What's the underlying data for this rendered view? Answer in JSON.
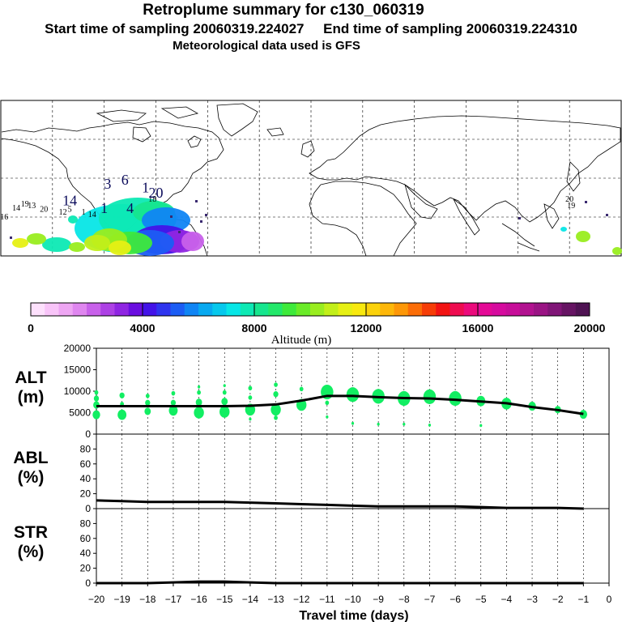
{
  "header": {
    "title": "Retroplume summary for c130_060319",
    "start_label": "Start time of sampling",
    "start_value": "20060319.224027",
    "end_label": "End time of sampling",
    "end_value": "20060319.224310",
    "met_line": "Meteorological data used is GFS"
  },
  "colors": {
    "altitude_scale": [
      "#fde0fc",
      "#f8c4f8",
      "#eea6f3",
      "#df86ef",
      "#c861ea",
      "#ad41e5",
      "#8f25e2",
      "#6a0ee0",
      "#4313e8",
      "#2f35ef",
      "#1c5df4",
      "#1085f4",
      "#08a9f0",
      "#06c8ec",
      "#07e6e6",
      "#0de9b4",
      "#16e68e",
      "#23e86a",
      "#3eea3b",
      "#6aeb28",
      "#99ed1f",
      "#c2ef19",
      "#e6f014",
      "#f8e90f",
      "#fbd20b",
      "#fdb709",
      "#fd9707",
      "#fb6d07",
      "#f63d07",
      "#f21313",
      "#ee0c50",
      "#eb0a7c",
      "#e40a96",
      "#d60b9e",
      "#c70e99",
      "#b21290",
      "#9a1484",
      "#801577",
      "#661463",
      "#4f1353"
    ],
    "marker": "#12ee62",
    "line": "#000000"
  },
  "chart_data": [
    {
      "type": "map",
      "name": "retroplume-map",
      "cluster_labels": [
        {
          "label": "18",
          "lon": -92,
          "lat": 12
        },
        {
          "label": "12",
          "lon": -144,
          "lat": 2
        },
        {
          "label": "14",
          "lon": -171,
          "lat": 5
        },
        {
          "label": "16",
          "lon": -178,
          "lat": -2
        },
        {
          "label": "19",
          "lon": -166,
          "lat": 8
        },
        {
          "label": "20",
          "lon": -155,
          "lat": 4
        },
        {
          "label": "13",
          "lon": -162,
          "lat": 7
        },
        {
          "label": "1",
          "lon": -132,
          "lat": 2
        },
        {
          "label": "14",
          "lon": -127,
          "lat": 0
        },
        {
          "label": "5",
          "lon": -140,
          "lat": 4
        },
        {
          "label": "19",
          "lon": 151,
          "lat": 7
        },
        {
          "label": "20",
          "lon": 150,
          "lat": 12
        }
      ],
      "large_labels": [
        {
          "label": "1",
          "lon": -120,
          "lat": 3
        },
        {
          "label": "4",
          "lon": -105,
          "lat": 3
        },
        {
          "label": "14",
          "lon": -140,
          "lat": 9
        },
        {
          "label": "20",
          "lon": -90,
          "lat": 15
        },
        {
          "label": "3",
          "lon": -118,
          "lat": 22
        },
        {
          "label": "6",
          "lon": -108,
          "lat": 25
        },
        {
          "label": "1",
          "lon": -96,
          "lat": 19
        }
      ]
    },
    {
      "type": "colorbar",
      "name": "altitude-colorbar",
      "range": [
        0,
        20000
      ],
      "ticks": [
        0,
        4000,
        8000,
        12000,
        16000,
        20000
      ],
      "label": "Altitude (m)"
    },
    {
      "type": "scatter+line",
      "name": "alt-panel",
      "ylabel": "ALT\n(m)",
      "ylim": [
        0,
        20000
      ],
      "yticks": [
        0,
        5000,
        10000,
        15000,
        20000
      ],
      "x": [
        -20,
        -19,
        -18,
        -17,
        -16,
        -15,
        -14,
        -13,
        -12,
        -11,
        -10,
        -9,
        -8,
        -7,
        -6,
        -5,
        -4,
        -3,
        -2,
        -1
      ],
      "median": [
        6500,
        6500,
        6500,
        6500,
        6500,
        6500,
        6600,
        6900,
        7800,
        8900,
        8900,
        8600,
        8400,
        8300,
        8000,
        7600,
        7200,
        6300,
        5600,
        4700
      ],
      "points": [
        {
          "x": -20,
          "y": 4500,
          "s": 5
        },
        {
          "x": -20,
          "y": 6800,
          "s": 4
        },
        {
          "x": -20,
          "y": 8300,
          "s": 3
        },
        {
          "x": -20,
          "y": 9700,
          "s": 2
        },
        {
          "x": -19,
          "y": 4500,
          "s": 6
        },
        {
          "x": -19,
          "y": 9000,
          "s": 3
        },
        {
          "x": -19,
          "y": 7000,
          "s": 2
        },
        {
          "x": -18,
          "y": 5300,
          "s": 4
        },
        {
          "x": -18,
          "y": 7300,
          "s": 3
        },
        {
          "x": -18,
          "y": 8900,
          "s": 2
        },
        {
          "x": -17,
          "y": 5500,
          "s": 6
        },
        {
          "x": -17,
          "y": 7300,
          "s": 3
        },
        {
          "x": -17,
          "y": 9500,
          "s": 2
        },
        {
          "x": -16,
          "y": 5000,
          "s": 7
        },
        {
          "x": -16,
          "y": 7400,
          "s": 4
        },
        {
          "x": -16,
          "y": 9700,
          "s": 2
        },
        {
          "x": -16,
          "y": 11000,
          "s": 1
        },
        {
          "x": -15,
          "y": 5200,
          "s": 7
        },
        {
          "x": -15,
          "y": 7600,
          "s": 4
        },
        {
          "x": -15,
          "y": 9700,
          "s": 2
        },
        {
          "x": -15,
          "y": 11300,
          "s": 1
        },
        {
          "x": -14,
          "y": 5700,
          "s": 7
        },
        {
          "x": -14,
          "y": 3500,
          "s": 1
        },
        {
          "x": -14,
          "y": 8500,
          "s": 2
        },
        {
          "x": -14,
          "y": 10700,
          "s": 2
        },
        {
          "x": -13,
          "y": 5700,
          "s": 7
        },
        {
          "x": -13,
          "y": 3800,
          "s": 2
        },
        {
          "x": -13,
          "y": 9300,
          "s": 3
        },
        {
          "x": -13,
          "y": 11500,
          "s": 2
        },
        {
          "x": -12,
          "y": 6800,
          "s": 7
        },
        {
          "x": -12,
          "y": 10500,
          "s": 2
        },
        {
          "x": -11,
          "y": 9800,
          "s": 9
        },
        {
          "x": -11,
          "y": 4000,
          "s": 1
        },
        {
          "x": -11,
          "y": 7300,
          "s": 2
        },
        {
          "x": -10,
          "y": 9200,
          "s": 9
        },
        {
          "x": -10,
          "y": 2500,
          "s": 1
        },
        {
          "x": -9,
          "y": 8800,
          "s": 9
        },
        {
          "x": -9,
          "y": 2300,
          "s": 1
        },
        {
          "x": -8,
          "y": 8300,
          "s": 9
        },
        {
          "x": -8,
          "y": 2300,
          "s": 1
        },
        {
          "x": -7,
          "y": 8700,
          "s": 9
        },
        {
          "x": -7,
          "y": 2100,
          "s": 1
        },
        {
          "x": -6,
          "y": 8300,
          "s": 9
        },
        {
          "x": -5,
          "y": 7700,
          "s": 6
        },
        {
          "x": -5,
          "y": 2000,
          "s": 1
        },
        {
          "x": -4,
          "y": 7100,
          "s": 7
        },
        {
          "x": -3,
          "y": 6500,
          "s": 5
        },
        {
          "x": -2,
          "y": 5700,
          "s": 4
        },
        {
          "x": -1,
          "y": 4600,
          "s": 5
        }
      ]
    },
    {
      "type": "line",
      "name": "abl-panel",
      "ylabel": "ABL\n(%)",
      "ylim": [
        0,
        100
      ],
      "yticks": [
        0,
        20,
        40,
        60,
        80
      ],
      "x": [
        -20,
        -19,
        -18,
        -17,
        -16,
        -15,
        -14,
        -13,
        -12,
        -11,
        -10,
        -9,
        -8,
        -7,
        -6,
        -5,
        -4,
        -3,
        -2,
        -1
      ],
      "values": [
        11,
        10,
        9,
        9,
        9,
        9,
        8,
        7,
        6,
        5,
        4,
        3,
        3,
        3,
        3,
        2,
        1,
        1,
        1,
        0
      ]
    },
    {
      "type": "line",
      "name": "str-panel",
      "ylabel": "STR\n(%)",
      "ylim": [
        0,
        100
      ],
      "yticks": [
        0,
        20,
        40,
        60,
        80
      ],
      "x": [
        -20,
        -19,
        -18,
        -17,
        -16,
        -15,
        -14,
        -13,
        -12,
        -11,
        -10,
        -9,
        -8,
        -7,
        -6,
        -5,
        -4,
        -3,
        -2,
        -1
      ],
      "values": [
        0,
        0,
        0,
        1,
        2,
        2,
        1,
        0,
        0,
        0,
        0,
        0,
        0,
        0,
        0,
        0,
        0,
        0,
        0,
        0
      ]
    },
    {
      "type": "axis",
      "name": "x-axis",
      "xlabel": "Travel time (days)",
      "xlim": [
        -20,
        0
      ],
      "xticks": [
        -20,
        -19,
        -18,
        -17,
        -16,
        -15,
        -14,
        -13,
        -12,
        -11,
        -10,
        -9,
        -8,
        -7,
        -6,
        -5,
        -4,
        -3,
        -2,
        -1,
        0
      ]
    }
  ]
}
